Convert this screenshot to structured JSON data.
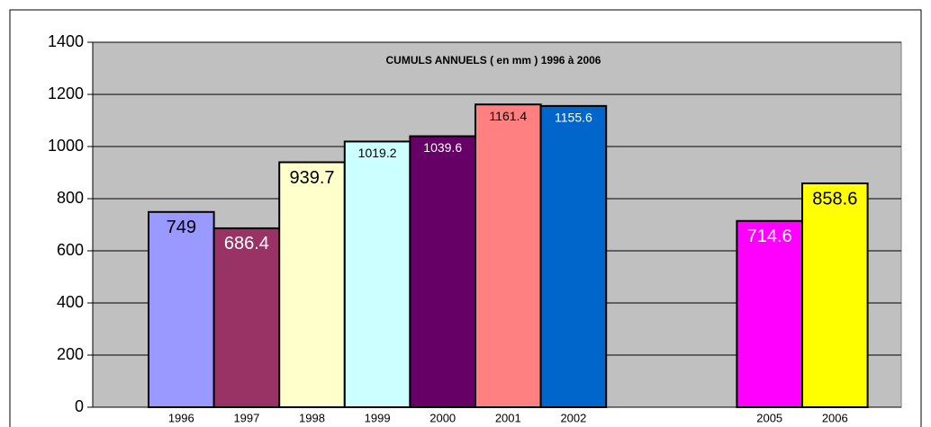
{
  "chart_data": {
    "type": "bar",
    "title": "CUMULS ANNUELS ( en mm ) 1996 à 2006",
    "categories": [
      "1996",
      "1997",
      "1998",
      "1999",
      "2000",
      "2001",
      "2002",
      null,
      null,
      "2005",
      "2006"
    ],
    "values": [
      749,
      686.4,
      939.7,
      1019.2,
      1039.6,
      1161.4,
      1155.6,
      null,
      null,
      714.6,
      858.6
    ],
    "colors": [
      "#9999ff",
      "#993366",
      "#ffffcc",
      "#ccffff",
      "#660066",
      "#ff8080",
      "#0066cc",
      null,
      null,
      "#ff00ff",
      "#ffff00"
    ],
    "ylim": [
      0,
      1400
    ],
    "yticks": [
      0,
      200,
      400,
      600,
      800,
      1000,
      1200,
      1400
    ],
    "grid": true
  }
}
